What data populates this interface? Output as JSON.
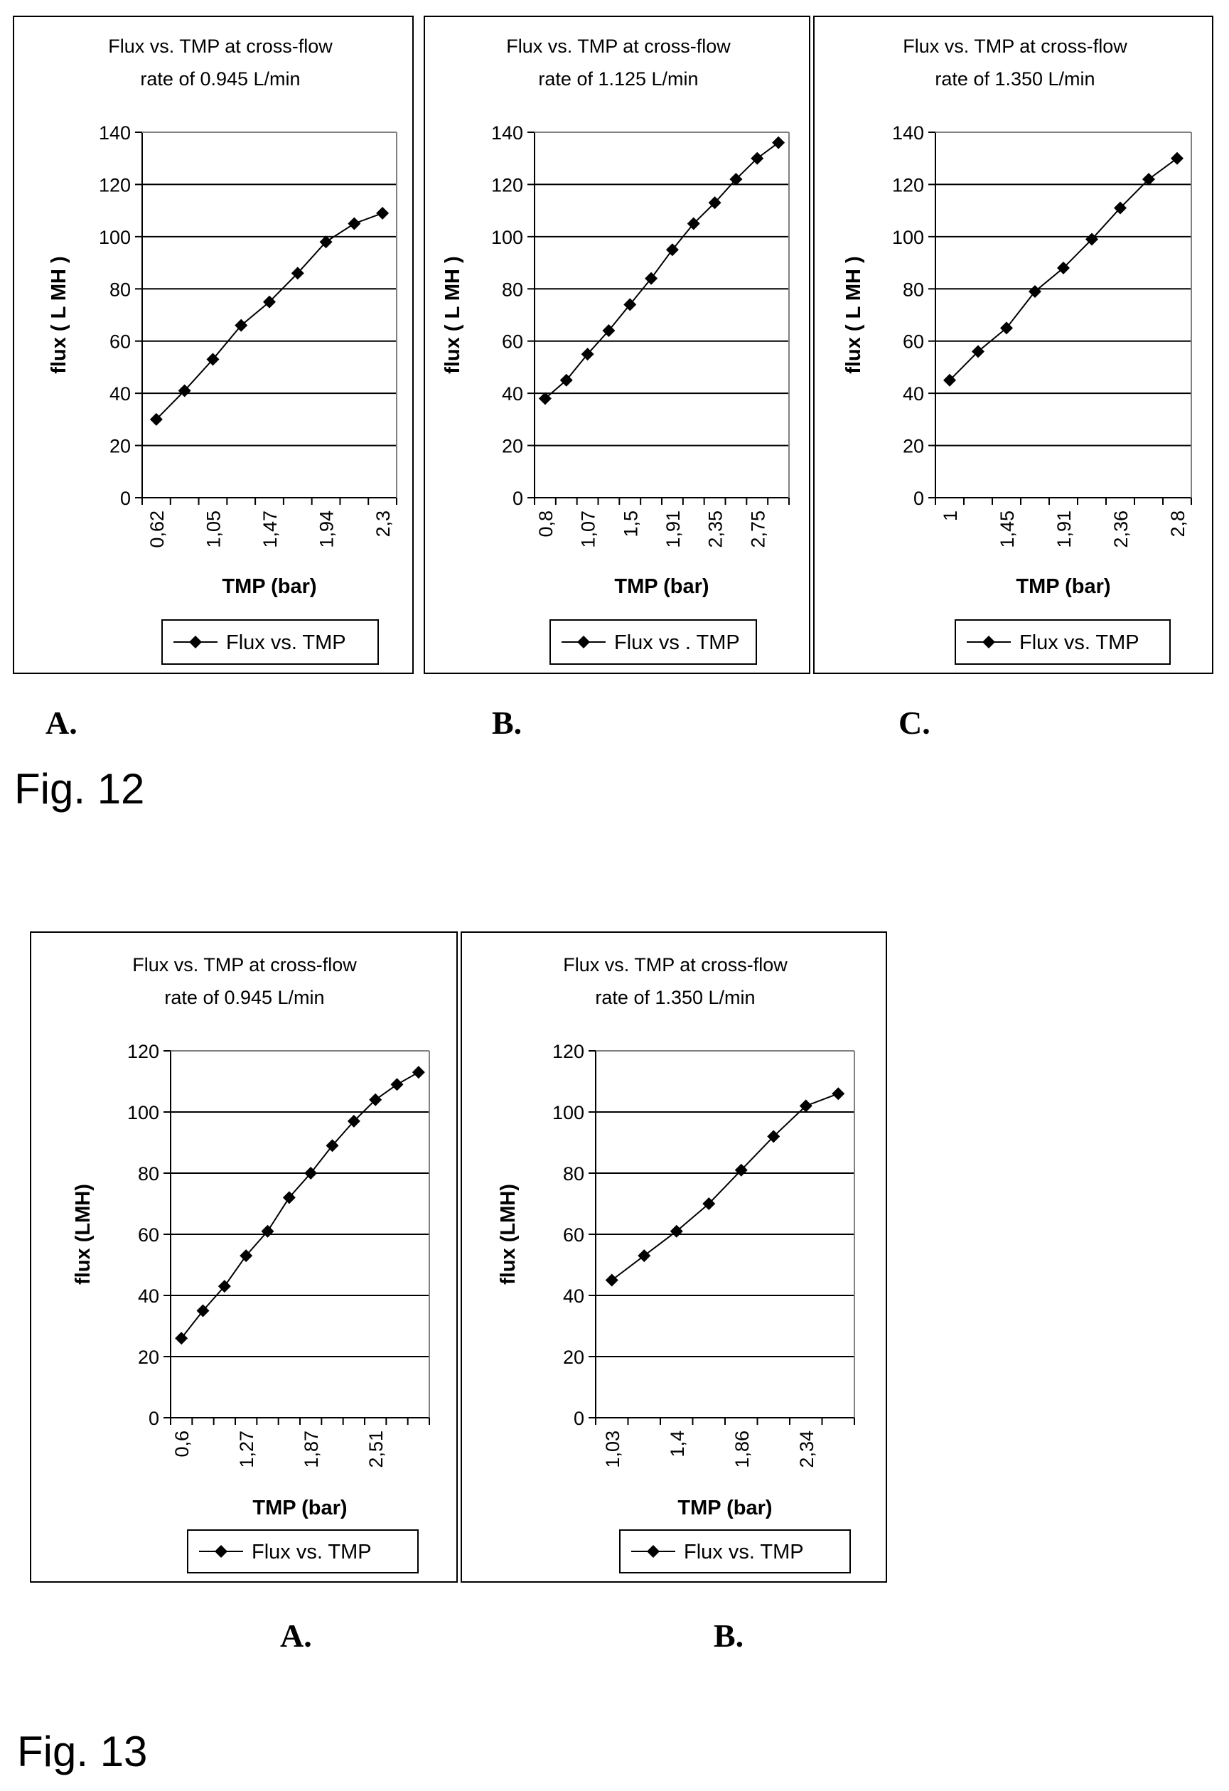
{
  "figures": [
    {
      "caption": "Fig. 12",
      "panels": [
        {
          "letter": "A.",
          "legend": "Flux vs. TMP",
          "title_line1": "Flux vs. TMP  at cross-flow",
          "title_line2": "rate of 0.945 L/min"
        },
        {
          "letter": "B.",
          "legend": "Flux vs . TMP",
          "title_line1": "Flux vs. TMP at cross-flow",
          "title_line2": "rate of 1.125 L/min"
        },
        {
          "letter": "C.",
          "legend": "Flux vs. TMP",
          "title_line1": "Flux vs. TMP  at cross-flow",
          "title_line2": "rate of 1.350 L/min"
        }
      ]
    },
    {
      "caption": "Fig. 13",
      "panels": [
        {
          "letter": "A.",
          "legend": "Flux vs. TMP",
          "title_line1": "Flux vs. TMP  at cross-flow",
          "title_line2": "rate of 0.945 L/min"
        },
        {
          "letter": "B.",
          "legend": "Flux vs. TMP",
          "title_line1": "Flux vs. TMP  at cross-flow",
          "title_line2": "rate of 1.350 L/min"
        }
      ]
    }
  ],
  "chart_data": [
    {
      "type": "line",
      "title": "Flux vs. TMP  at cross-flow rate of 0.945 L/min",
      "xlabel": "TMP (bar)",
      "ylabel": "flux ( L MH )",
      "ylim": [
        0,
        140
      ],
      "yticks": [
        0,
        20,
        40,
        60,
        80,
        100,
        120,
        140
      ],
      "x": [
        "0,62",
        "0,83",
        "1,05",
        "1,26",
        "1,47",
        "1,70",
        "1,94",
        "2,10",
        "2,3"
      ],
      "xtick_labels": [
        "0,62",
        "1,05",
        "1,47",
        "1,94",
        "2,3"
      ],
      "series": [
        {
          "name": "Flux vs. TMP",
          "values": [
            30,
            41,
            53,
            66,
            75,
            86,
            98,
            105,
            109
          ]
        }
      ],
      "grid": true,
      "legend": "bottom"
    },
    {
      "type": "line",
      "title": "Flux vs. TMP at cross-flow rate of 1.125 L/min",
      "xlabel": "TMP (bar)",
      "ylabel": "flux ( L MH )",
      "ylim": [
        0,
        140
      ],
      "yticks": [
        0,
        20,
        40,
        60,
        80,
        100,
        120,
        140
      ],
      "x": [
        "0,8",
        "0,94",
        "1,07",
        "1,29",
        "1,5",
        "1,70",
        "1,91",
        "2,13",
        "2,35",
        "2,55",
        "2,75",
        "2,95"
      ],
      "xtick_labels": [
        "0,8",
        "1,07",
        "1,5",
        "1,91",
        "2,35",
        "2,75"
      ],
      "series": [
        {
          "name": "Flux vs . TMP",
          "values": [
            38,
            45,
            55,
            64,
            74,
            84,
            95,
            105,
            113,
            122,
            130,
            136
          ]
        }
      ],
      "grid": true,
      "legend": "bottom"
    },
    {
      "type": "line",
      "title": "Flux vs. TMP  at cross-flow rate of 1.350 L/min",
      "xlabel": "TMP (bar)",
      "ylabel": "flux ( L MH )",
      "ylim": [
        0,
        140
      ],
      "yticks": [
        0,
        20,
        40,
        60,
        80,
        100,
        120,
        140
      ],
      "x": [
        "1",
        "1,22",
        "1,45",
        "1,68",
        "1,91",
        "2,13",
        "2,36",
        "2,58",
        "2,8"
      ],
      "xtick_labels": [
        "1",
        "1,45",
        "1,91",
        "2,36",
        "2,8"
      ],
      "series": [
        {
          "name": "Flux vs. TMP",
          "values": [
            45,
            56,
            65,
            79,
            88,
            99,
            111,
            122,
            130
          ]
        }
      ],
      "grid": true,
      "legend": "bottom"
    },
    {
      "type": "line",
      "title": "Flux vs. TMP  at cross-flow rate of 0.945 L/min",
      "xlabel": "TMP (bar)",
      "ylabel": "flux (LMH)",
      "ylim": [
        0,
        120
      ],
      "yticks": [
        0,
        20,
        40,
        60,
        80,
        100,
        120
      ],
      "x": [
        "0,6",
        "0,82",
        "1,05",
        "1,27",
        "1,47",
        "1,67",
        "1,87",
        "2,08",
        "2,30",
        "2,51",
        "2,70",
        "2,90"
      ],
      "xtick_labels": [
        "0,6",
        "1,27",
        "1,87",
        "2,51"
      ],
      "series": [
        {
          "name": "Flux vs. TMP",
          "values": [
            26,
            35,
            43,
            53,
            61,
            72,
            80,
            89,
            97,
            104,
            109,
            113
          ]
        }
      ],
      "grid": true,
      "legend": "bottom"
    },
    {
      "type": "line",
      "title": "Flux vs. TMP  at cross-flow rate of 1.350 L/min",
      "xlabel": "TMP (bar)",
      "ylabel": "flux (LMH)",
      "ylim": [
        0,
        120
      ],
      "yticks": [
        0,
        20,
        40,
        60,
        80,
        100,
        120
      ],
      "x": [
        "1,03",
        "1,22",
        "1,4",
        "1,62",
        "1,86",
        "2,10",
        "2,34",
        "2,55"
      ],
      "xtick_labels": [
        "1,03",
        "1,4",
        "1,86",
        "2,34"
      ],
      "series": [
        {
          "name": "Flux vs. TMP",
          "values": [
            45,
            53,
            61,
            70,
            81,
            92,
            102,
            106
          ]
        }
      ],
      "grid": true,
      "legend": "bottom"
    }
  ]
}
